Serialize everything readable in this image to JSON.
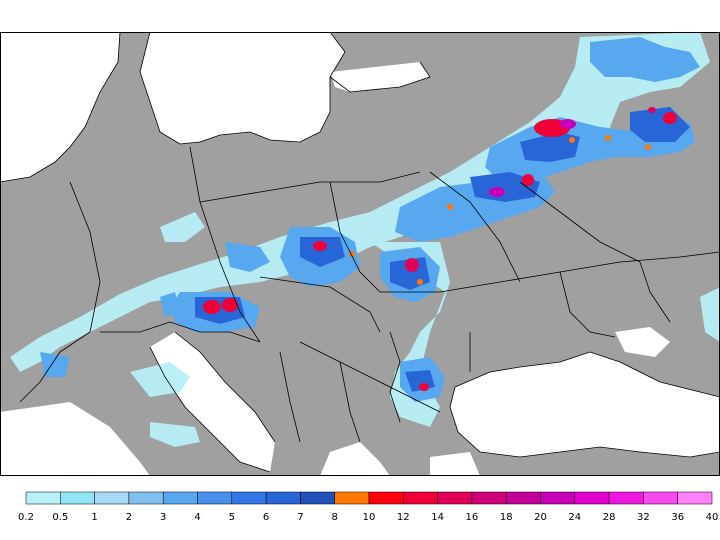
{
  "legend": {
    "colors": [
      "#b8f0f8",
      "#90e4f4",
      "#a8d8f8",
      "#80c0f0",
      "#58a8f0",
      "#4890ec",
      "#3478e8",
      "#2866d8",
      "#2050b8",
      "#ff7800",
      "#ff0010",
      "#f00038",
      "#e00058",
      "#d00078",
      "#c00098",
      "#c800b8",
      "#e000d0",
      "#f018e0",
      "#f848f0",
      "#ff80f8"
    ],
    "labels": [
      "0.2",
      "0.5",
      "1",
      "2",
      "3",
      "4",
      "5",
      "6",
      "7",
      "8",
      "10",
      "12",
      "14",
      "16",
      "18",
      "20",
      "24",
      "28",
      "32",
      "36",
      "40"
    ]
  },
  "map": {
    "land_color": "#a0a0a0",
    "sea_color": "#ffffff",
    "border_color": "#000000"
  }
}
